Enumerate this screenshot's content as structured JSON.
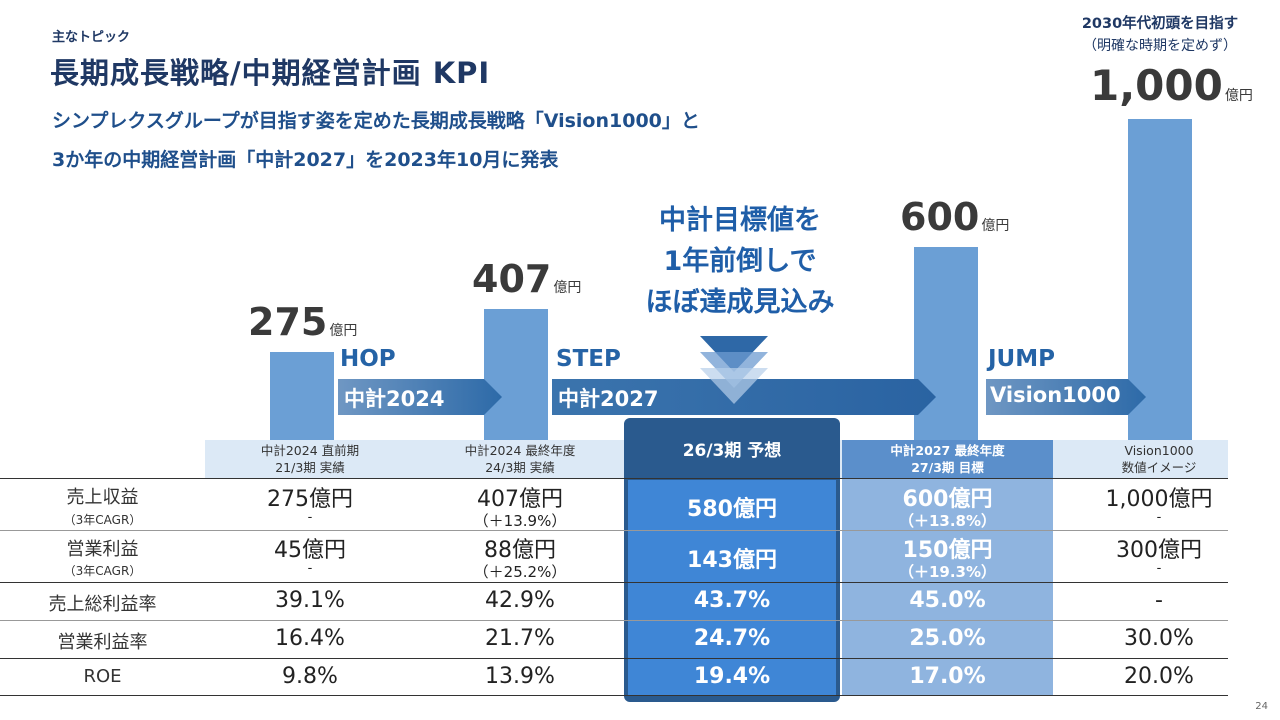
{
  "header": {
    "topic": "主なトピック",
    "title": "長期成長戦略/中期経営計画 KPI",
    "subtitle_line1": "シンプレクスグループが目指す姿を定めた長期成長戦略「Vision1000」と",
    "subtitle_line2": "3か年の中期経営計画「中計2027」を2023年10月に発表"
  },
  "chart_data": {
    "type": "bar",
    "title": "",
    "categories": [
      "中計2024 直前期 21/3期 実績",
      "中計2024 最終年度 24/3期 実績",
      "中計2027 最終年度 27/3期 目標",
      "Vision1000 数値イメージ"
    ],
    "values": [
      275,
      407,
      600,
      1000
    ],
    "unit": "億円",
    "ylabel": "売上収益",
    "ylim": [
      0,
      1000
    ],
    "bar_labels": [
      "275",
      "407",
      "600",
      "1,000"
    ]
  },
  "phases": {
    "hop": "HOP",
    "hop_plan": "中計2024",
    "step": "STEP",
    "step_plan": "中計2027",
    "jump": "JUMP",
    "jump_plan": "Vision1000"
  },
  "callout": {
    "line1": "中計目標値を",
    "line2": "1年前倒しで",
    "line3": "ほぼ達成見込み"
  },
  "vision_note": {
    "line1": "2030年代初頭を目指す",
    "line2": "（明確な時期を定めず）"
  },
  "table": {
    "columns": [
      {
        "line1": "中計2024 直前期",
        "line2": "21/3期 実績"
      },
      {
        "line1": "中計2024 最終年度",
        "line2": "24/3期 実績"
      },
      {
        "line1": "26/3期 予想"
      },
      {
        "line1": "中計2027 最終年度",
        "line2": "27/3期 目標"
      },
      {
        "line1": "Vision1000",
        "line2": "数値イメージ"
      }
    ],
    "rows": {
      "revenue": {
        "label": "売上収益",
        "sublabel": "（3年CAGR）",
        "values": [
          "275億円",
          "407億円",
          "580億円",
          "600億円",
          "1,000億円"
        ],
        "subs": [
          "-",
          "（＋13.9%）",
          "",
          "（＋13.8%）",
          "-"
        ]
      },
      "op_profit": {
        "label": "営業利益",
        "sublabel": "（3年CAGR）",
        "values": [
          "45億円",
          "88億円",
          "143億円",
          "150億円",
          "300億円"
        ],
        "subs": [
          "-",
          "（＋25.2%）",
          "",
          "（＋19.3%）",
          "-"
        ]
      },
      "gross_margin": {
        "label": "売上総利益率",
        "values": [
          "39.1%",
          "42.9%",
          "43.7%",
          "45.0%",
          "-"
        ]
      },
      "op_margin": {
        "label": "営業利益率",
        "values": [
          "16.4%",
          "21.7%",
          "24.7%",
          "25.0%",
          "30.0%"
        ]
      },
      "roe": {
        "label": "ROE",
        "values": [
          "9.8%",
          "13.9%",
          "19.4%",
          "17.0%",
          "20.0%"
        ]
      }
    }
  },
  "page_number": "24",
  "colors": {
    "bar": "#6b9fd5",
    "navy": "#1f3864",
    "accent_blue": "#2563a6",
    "forecast_header": "#2a5a8e",
    "forecast_cell": "#3f86d6",
    "target_col": "#8fb4df",
    "header_band": "#dce9f6"
  }
}
